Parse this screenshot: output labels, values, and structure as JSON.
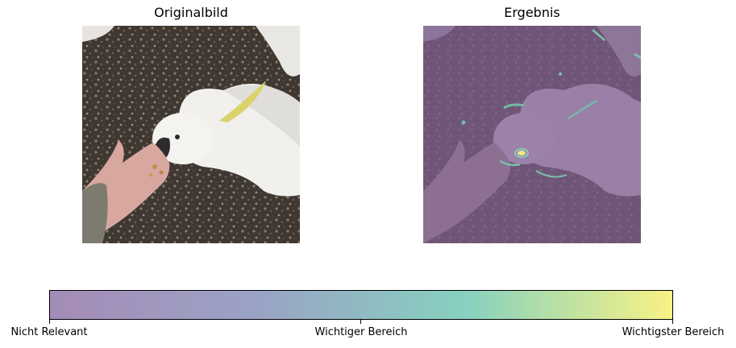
{
  "left_panel": {
    "title": "Originalbild"
  },
  "right_panel": {
    "title": "Ergebnis"
  },
  "colorbar": {
    "ticks": [
      "Nicht Relevant",
      "Wichtiger Bereich",
      "Wichtigster Bereich"
    ],
    "colors": [
      "#a58bb8",
      "#9aa3c5",
      "#86d1bf",
      "#f8f285"
    ]
  }
}
